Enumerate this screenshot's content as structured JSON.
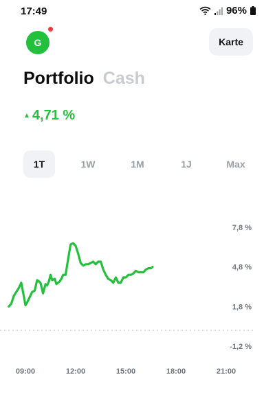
{
  "status_bar": {
    "time": "17:49",
    "battery": "96%",
    "icons": [
      "wifi-icon",
      "signal-icon",
      "battery-icon"
    ]
  },
  "header": {
    "avatar_letter": "G",
    "avatar_color": "#22c03c",
    "notification_dot_color": "#ee3b3b",
    "map_button": "Karte"
  },
  "tabs": [
    {
      "label": "Portfolio",
      "active": true
    },
    {
      "label": "Cash",
      "active": false
    }
  ],
  "performance": {
    "arrow": "▲",
    "value": "4,71 %",
    "color": "#22c03c"
  },
  "periods": [
    {
      "label": "1T",
      "active": true
    },
    {
      "label": "1W",
      "active": false
    },
    {
      "label": "1M",
      "active": false
    },
    {
      "label": "1J",
      "active": false
    },
    {
      "label": "Max",
      "active": false
    }
  ],
  "chart_data": {
    "type": "line",
    "title": "",
    "xlabel": "",
    "ylabel": "",
    "x_ticks": [
      "09:00",
      "12:00",
      "15:00",
      "18:00",
      "21:00"
    ],
    "y_ticks": [
      "7,8 %",
      "4,8 %",
      "1,8 %",
      "-1,2 %"
    ],
    "y_tick_values": [
      7.8,
      4.8,
      1.8,
      -1.2
    ],
    "x_tick_hours": [
      9,
      12,
      15,
      18,
      21
    ],
    "ylim": [
      -1.2,
      7.8
    ],
    "xlim": [
      8.0,
      22.5
    ],
    "line_color": "#22c03c",
    "baseline_value": 0.0,
    "grid": false,
    "series": [
      {
        "x": [
          8.0,
          8.15,
          8.3,
          8.45,
          8.6,
          8.75,
          8.9,
          9.0,
          9.1,
          9.25,
          9.4,
          9.55,
          9.7,
          9.8,
          9.9,
          10.05,
          10.2,
          10.3,
          10.4,
          10.5,
          10.6,
          10.75,
          10.85,
          10.95,
          11.05,
          11.15,
          11.25,
          11.4,
          11.55,
          11.7,
          11.85,
          12.0,
          12.15,
          12.3,
          12.45,
          12.6,
          12.75,
          12.9,
          13.05,
          13.2,
          13.35,
          13.5,
          13.65,
          13.8,
          13.95,
          14.1,
          14.25,
          14.4,
          14.55,
          14.7,
          14.85,
          15.0,
          15.15,
          15.3,
          15.45,
          15.6,
          15.75,
          15.9,
          16.05,
          16.2,
          16.35,
          16.5,
          16.6
        ],
        "values": [
          1.8,
          2.0,
          2.6,
          2.9,
          3.2,
          3.6,
          2.6,
          1.9,
          2.1,
          2.5,
          2.9,
          3.0,
          3.8,
          3.7,
          3.6,
          2.8,
          3.5,
          3.4,
          3.7,
          4.2,
          3.8,
          3.9,
          3.5,
          3.6,
          3.7,
          3.9,
          4.2,
          4.2,
          5.4,
          6.5,
          6.6,
          6.4,
          5.8,
          5.1,
          4.9,
          5.0,
          5.0,
          5.1,
          5.2,
          5.0,
          5.2,
          5.2,
          4.6,
          4.2,
          3.9,
          3.8,
          3.6,
          4.0,
          3.6,
          3.6,
          4.0,
          4.0,
          4.2,
          4.2,
          4.3,
          4.5,
          4.4,
          4.4,
          4.4,
          4.6,
          4.7,
          4.7,
          4.8
        ]
      }
    ]
  }
}
